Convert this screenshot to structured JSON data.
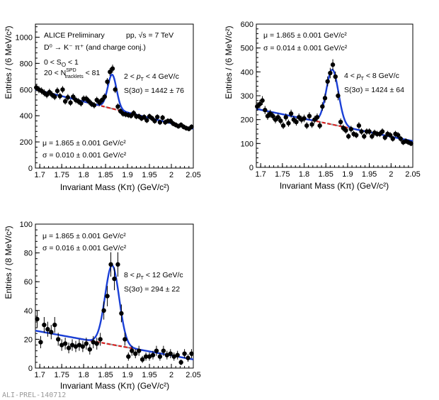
{
  "page": {
    "label": "ALI-PREL-140712",
    "experiment": "ALICE Preliminary",
    "collision": "pp, √s = 7 TeV",
    "decay": "D⁰ → K⁻ π⁺ (and charge conj.)",
    "so_cut": "0 < S",
    "so_cut_sub": "O",
    "so_cut_end": " < 1",
    "trk_lo": "20 < N",
    "trk_sup": "SPD",
    "trk_sub": "tracklets",
    "trk_hi": " < 81"
  },
  "colors": {
    "fit": "#1a3fd6",
    "bkg_red": "#d62020",
    "bkg_gray": "#999999",
    "points": "#000000"
  },
  "chart_data": [
    {
      "type": "scatter",
      "panel": "top-left",
      "pt_range": "2 < pT < 4 GeV/c",
      "pt_pre": "2 < ",
      "pt_post": " < 4 GeV/c",
      "signal": "S(3σ) = 1442 ± 76",
      "mu": "μ = 1.865 ± 0.001 GeV/c²",
      "sigma": "σ = 0.010 ± 0.001 GeV/c²",
      "xlabel": "Invariant Mass (Kπ) (GeV/c²)",
      "ylabel": "Entries / (6 MeV/c²)",
      "xlim": [
        1.69,
        2.05
      ],
      "ylim": [
        0,
        1100
      ],
      "xticks": [
        "1.7",
        "1.75",
        "1.8",
        "1.85",
        "1.9",
        "1.95",
        "2",
        "2.05"
      ],
      "yticks": [
        0,
        200,
        400,
        600,
        800,
        1000
      ],
      "x": [
        1.692,
        1.698,
        1.704,
        1.71,
        1.716,
        1.722,
        1.728,
        1.734,
        1.74,
        1.746,
        1.752,
        1.758,
        1.764,
        1.77,
        1.776,
        1.782,
        1.788,
        1.794,
        1.8,
        1.806,
        1.812,
        1.818,
        1.824,
        1.83,
        1.836,
        1.842,
        1.848,
        1.854,
        1.86,
        1.866,
        1.872,
        1.878,
        1.884,
        1.89,
        1.896,
        1.902,
        1.908,
        1.914,
        1.92,
        1.926,
        1.932,
        1.938,
        1.944,
        1.95,
        1.956,
        1.962,
        1.968,
        1.974,
        1.98,
        1.986,
        1.992,
        1.998,
        2.004,
        2.01,
        2.016,
        2.022,
        2.028,
        2.034,
        2.04,
        2.046
      ],
      "y": [
        615,
        600,
        590,
        575,
        560,
        580,
        560,
        545,
        590,
        550,
        600,
        510,
        540,
        500,
        545,
        520,
        510,
        495,
        530,
        530,
        510,
        490,
        480,
        520,
        500,
        520,
        545,
        660,
        735,
        760,
        600,
        470,
        435,
        415,
        410,
        405,
        400,
        420,
        395,
        395,
        380,
        390,
        365,
        395,
        380,
        360,
        390,
        350,
        385,
        350,
        360,
        360,
        340,
        330,
        320,
        330,
        315,
        305,
        300,
        315
      ],
      "bkg": [
        [
          1.69,
          600
        ],
        [
          2.05,
          300
        ]
      ],
      "peak": {
        "mu": 1.865,
        "sigma": 0.01,
        "amp": 260
      }
    },
    {
      "type": "scatter",
      "panel": "top-right",
      "pt_range": "4 < pT < 8 GeV/c",
      "pt_pre": "4 < ",
      "pt_post": " < 8 GeV/c",
      "signal": "S(3σ) = 1424 ± 64",
      "mu": "μ = 1.865 ± 0.001 GeV/c²",
      "sigma": "σ = 0.014 ± 0.001 GeV/c²",
      "xlabel": "Invariant Mass (Kπ) (GeV/c²)",
      "ylabel": "Entries / (6 MeV/c²)",
      "xlim": [
        1.69,
        2.05
      ],
      "ylim": [
        0,
        600
      ],
      "xticks": [
        "1.7",
        "1.75",
        "1.8",
        "1.85",
        "1.9",
        "1.95",
        "2",
        "2.05"
      ],
      "yticks": [
        0,
        100,
        200,
        300,
        400,
        500,
        600
      ],
      "x": [
        1.692,
        1.698,
        1.704,
        1.71,
        1.716,
        1.722,
        1.728,
        1.734,
        1.74,
        1.746,
        1.752,
        1.758,
        1.764,
        1.77,
        1.776,
        1.782,
        1.788,
        1.794,
        1.8,
        1.806,
        1.812,
        1.818,
        1.824,
        1.83,
        1.836,
        1.842,
        1.848,
        1.854,
        1.86,
        1.866,
        1.872,
        1.878,
        1.884,
        1.89,
        1.896,
        1.902,
        1.908,
        1.914,
        1.92,
        1.926,
        1.932,
        1.938,
        1.944,
        1.95,
        1.956,
        1.962,
        1.968,
        1.974,
        1.98,
        1.986,
        1.992,
        1.998,
        2.004,
        2.01,
        2.016,
        2.022,
        2.028,
        2.034,
        2.04,
        2.046
      ],
      "y": [
        255,
        265,
        280,
        240,
        215,
        225,
        215,
        200,
        210,
        195,
        175,
        210,
        185,
        225,
        200,
        190,
        210,
        200,
        205,
        175,
        215,
        180,
        200,
        210,
        175,
        255,
        290,
        360,
        395,
        430,
        380,
        300,
        190,
        165,
        155,
        130,
        160,
        140,
        135,
        175,
        150,
        130,
        150,
        150,
        130,
        145,
        140,
        140,
        150,
        125,
        140,
        135,
        120,
        140,
        135,
        120,
        105,
        110,
        105,
        100
      ],
      "bkg": [
        [
          1.69,
          245
        ],
        [
          2.05,
          110
        ]
      ],
      "peak": {
        "mu": 1.865,
        "sigma": 0.014,
        "amp": 230
      }
    },
    {
      "type": "scatter",
      "panel": "bottom-left",
      "pt_range": "8 < pT < 12 GeV/c",
      "pt_pre": "8 < ",
      "pt_post": " < 12 GeV/c",
      "signal": "S(3σ) = 294 ± 22",
      "mu": "μ = 1.865 ± 0.001 GeV/c²",
      "sigma": "σ = 0.016 ± 0.001 GeV/c²",
      "xlabel": "Invariant Mass (Kπ) (GeV/c²)",
      "ylabel": "Entries / (8 MeV/c²)",
      "xlim": [
        1.69,
        2.05
      ],
      "ylim": [
        0,
        100
      ],
      "xticks": [
        "1.7",
        "1.75",
        "1.8",
        "1.85",
        "1.9",
        "1.95",
        "2",
        "2.05"
      ],
      "yticks": [
        0,
        20,
        40,
        60,
        80,
        100
      ],
      "x": [
        1.694,
        1.702,
        1.71,
        1.718,
        1.726,
        1.734,
        1.742,
        1.75,
        1.758,
        1.766,
        1.774,
        1.782,
        1.79,
        1.798,
        1.806,
        1.814,
        1.822,
        1.83,
        1.838,
        1.846,
        1.854,
        1.862,
        1.87,
        1.878,
        1.886,
        1.894,
        1.902,
        1.91,
        1.918,
        1.926,
        1.934,
        1.942,
        1.95,
        1.958,
        1.966,
        1.974,
        1.982,
        1.99,
        1.998,
        2.006,
        2.014,
        2.022,
        2.03,
        2.038,
        2.046
      ],
      "y": [
        34,
        18,
        30,
        27,
        25,
        30,
        20,
        16,
        17,
        14,
        16,
        15,
        16,
        15,
        17,
        13,
        18,
        17,
        20,
        40,
        50,
        72,
        62,
        72,
        38,
        20,
        8,
        12,
        10,
        12,
        6,
        8,
        8,
        9,
        12,
        8,
        12,
        9,
        10,
        8,
        9,
        4,
        10,
        7,
        10
      ],
      "bkg": [
        [
          1.69,
          26
        ],
        [
          2.05,
          6
        ]
      ],
      "peak": {
        "mu": 1.865,
        "sigma": 0.016,
        "amp": 55
      }
    }
  ]
}
